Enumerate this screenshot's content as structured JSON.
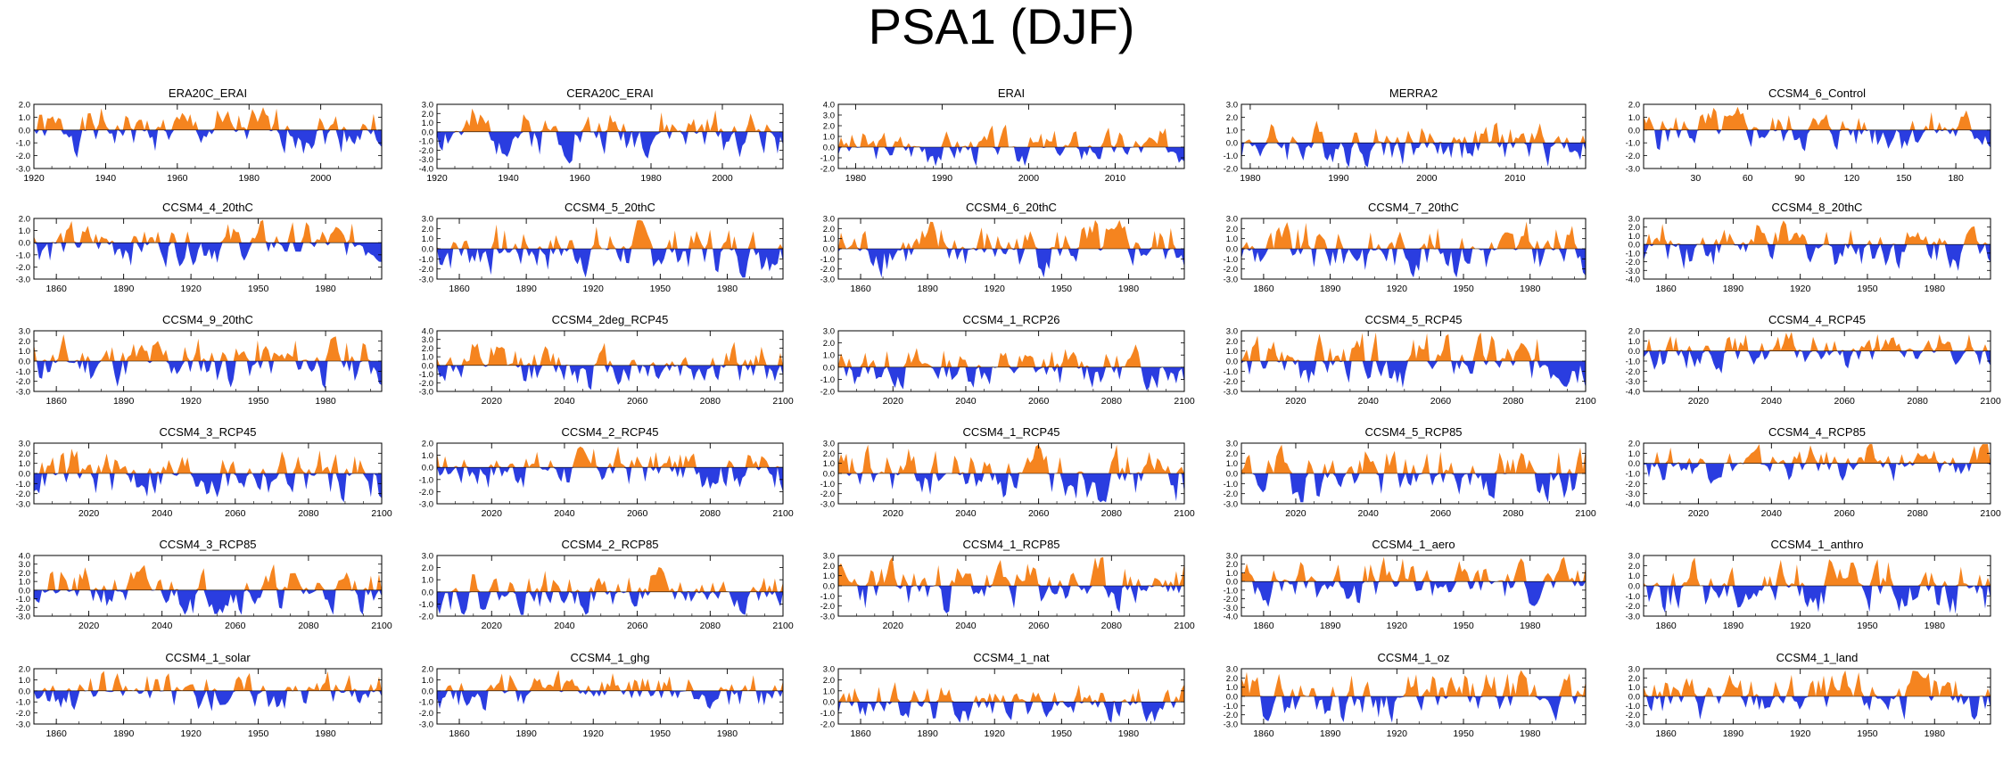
{
  "title": "PSA1 (DJF)",
  "colors": {
    "positive": "#f5841f",
    "negative": "#2a3de0",
    "axis": "#000000"
  },
  "chart_data": [
    {
      "type": "area",
      "title": "ERA20C_ERAI",
      "xlim": [
        1920,
        2017
      ],
      "xticks": [
        1920,
        1940,
        1960,
        1980,
        2000
      ],
      "ylim": [
        -3,
        2
      ],
      "yticks": [
        "2.0",
        "1.0",
        "0.0",
        "-1.0",
        "-2.0",
        "-3.0"
      ],
      "seed": 1
    },
    {
      "type": "area",
      "title": "CERA20C_ERAI",
      "xlim": [
        1920,
        2017
      ],
      "xticks": [
        1920,
        1940,
        1960,
        1980,
        2000
      ],
      "ylim": [
        -4,
        3
      ],
      "yticks": [
        "3.0",
        "2.0",
        "1.0",
        "0.0",
        "-1.0",
        "-2.0",
        "-3.0",
        "-4.0"
      ],
      "seed": 2
    },
    {
      "type": "area",
      "title": "ERAI",
      "xlim": [
        1978,
        2018
      ],
      "xticks": [
        1980,
        1990,
        2000,
        2010
      ],
      "ylim": [
        -2,
        4
      ],
      "yticks": [
        "4.0",
        "3.0",
        "2.0",
        "1.0",
        "0.0",
        "-1.0",
        "-2.0"
      ],
      "seed": 3
    },
    {
      "type": "area",
      "title": "MERRA2",
      "xlim": [
        1979,
        2018
      ],
      "xticks": [
        1980,
        1990,
        2000,
        2010
      ],
      "ylim": [
        -2,
        3
      ],
      "yticks": [
        "3.0",
        "2.0",
        "1.0",
        "0.0",
        "-1.0",
        "-2.0"
      ],
      "seed": 4
    },
    {
      "type": "area",
      "title": "CCSM4_6_Control",
      "xlim": [
        0,
        200
      ],
      "xticks": [
        30,
        60,
        90,
        120,
        150,
        180
      ],
      "ylim": [
        -3,
        2
      ],
      "yticks": [
        "2.0",
        "1.0",
        "0.0",
        "-1.0",
        "-2.0",
        "-3.0"
      ],
      "seed": 5
    },
    {
      "type": "area",
      "title": "CCSM4_4_20thC",
      "xlim": [
        1850,
        2005
      ],
      "xticks": [
        1860,
        1890,
        1920,
        1950,
        1980
      ],
      "ylim": [
        -3,
        2
      ],
      "yticks": [
        "2.0",
        "1.0",
        "0.0",
        "-1.0",
        "-2.0",
        "-3.0"
      ],
      "seed": 6
    },
    {
      "type": "area",
      "title": "CCSM4_5_20thC",
      "xlim": [
        1850,
        2005
      ],
      "xticks": [
        1860,
        1890,
        1920,
        1950,
        1980
      ],
      "ylim": [
        -3,
        3
      ],
      "yticks": [
        "3.0",
        "2.0",
        "1.0",
        "0.0",
        "-1.0",
        "-2.0",
        "-3.0"
      ],
      "seed": 7
    },
    {
      "type": "area",
      "title": "CCSM4_6_20thC",
      "xlim": [
        1850,
        2005
      ],
      "xticks": [
        1860,
        1890,
        1920,
        1950,
        1980
      ],
      "ylim": [
        -3,
        3
      ],
      "yticks": [
        "3.0",
        "2.0",
        "1.0",
        "0.0",
        "-1.0",
        "-2.0",
        "-3.0"
      ],
      "seed": 8
    },
    {
      "type": "area",
      "title": "CCSM4_7_20thC",
      "xlim": [
        1850,
        2005
      ],
      "xticks": [
        1860,
        1890,
        1920,
        1950,
        1980
      ],
      "ylim": [
        -3,
        3
      ],
      "yticks": [
        "3.0",
        "2.0",
        "1.0",
        "0.0",
        "-1.0",
        "-2.0",
        "-3.0"
      ],
      "seed": 9
    },
    {
      "type": "area",
      "title": "CCSM4_8_20thC",
      "xlim": [
        1850,
        2005
      ],
      "xticks": [
        1860,
        1890,
        1920,
        1950,
        1980
      ],
      "ylim": [
        -4,
        3
      ],
      "yticks": [
        "3.0",
        "2.0",
        "1.0",
        "0.0",
        "-1.0",
        "-2.0",
        "-3.0",
        "-4.0"
      ],
      "seed": 10
    },
    {
      "type": "area",
      "title": "CCSM4_9_20thC",
      "xlim": [
        1850,
        2005
      ],
      "xticks": [
        1860,
        1890,
        1920,
        1950,
        1980
      ],
      "ylim": [
        -3,
        3
      ],
      "yticks": [
        "3.0",
        "2.0",
        "1.0",
        "0.0",
        "-1.0",
        "-2.0",
        "-3.0"
      ],
      "seed": 11
    },
    {
      "type": "area",
      "title": "CCSM4_2deg_RCP45",
      "xlim": [
        2005,
        2100
      ],
      "xticks": [
        2020,
        2040,
        2060,
        2080,
        2100
      ],
      "ylim": [
        -3,
        4
      ],
      "yticks": [
        "4.0",
        "3.0",
        "2.0",
        "1.0",
        "0.0",
        "-1.0",
        "-2.0",
        "-3.0"
      ],
      "seed": 12
    },
    {
      "type": "area",
      "title": "CCSM4_1_RCP26",
      "xlim": [
        2005,
        2100
      ],
      "xticks": [
        2020,
        2040,
        2060,
        2080,
        2100
      ],
      "ylim": [
        -2,
        3
      ],
      "yticks": [
        "3.0",
        "2.0",
        "1.0",
        "0.0",
        "-1.0",
        "-2.0"
      ],
      "seed": 13
    },
    {
      "type": "area",
      "title": "CCSM4_5_RCP45",
      "xlim": [
        2005,
        2100
      ],
      "xticks": [
        2020,
        2040,
        2060,
        2080,
        2100
      ],
      "ylim": [
        -3,
        3
      ],
      "yticks": [
        "3.0",
        "2.0",
        "1.0",
        "0.0",
        "-1.0",
        "-2.0",
        "-3.0"
      ],
      "seed": 14
    },
    {
      "type": "area",
      "title": "CCSM4_4_RCP45",
      "xlim": [
        2005,
        2100
      ],
      "xticks": [
        2020,
        2040,
        2060,
        2080,
        2100
      ],
      "ylim": [
        -4,
        2
      ],
      "yticks": [
        "2.0",
        "1.0",
        "0.0",
        "-1.0",
        "-2.0",
        "-3.0",
        "-4.0"
      ],
      "seed": 15
    },
    {
      "type": "area",
      "title": "CCSM4_3_RCP45",
      "xlim": [
        2005,
        2100
      ],
      "xticks": [
        2020,
        2040,
        2060,
        2080,
        2100
      ],
      "ylim": [
        -3,
        3
      ],
      "yticks": [
        "3.0",
        "2.0",
        "1.0",
        "0.0",
        "-1.0",
        "-2.0",
        "-3.0"
      ],
      "seed": 16
    },
    {
      "type": "area",
      "title": "CCSM4_2_RCP45",
      "xlim": [
        2005,
        2100
      ],
      "xticks": [
        2020,
        2040,
        2060,
        2080,
        2100
      ],
      "ylim": [
        -3,
        2
      ],
      "yticks": [
        "2.0",
        "1.0",
        "0.0",
        "-1.0",
        "-2.0",
        "-3.0"
      ],
      "seed": 17
    },
    {
      "type": "area",
      "title": "CCSM4_1_RCP45",
      "xlim": [
        2005,
        2100
      ],
      "xticks": [
        2020,
        2040,
        2060,
        2080,
        2100
      ],
      "ylim": [
        -3,
        3
      ],
      "yticks": [
        "3.0",
        "2.0",
        "1.0",
        "0.0",
        "-1.0",
        "-2.0",
        "-3.0"
      ],
      "seed": 18
    },
    {
      "type": "area",
      "title": "CCSM4_5_RCP85",
      "xlim": [
        2005,
        2100
      ],
      "xticks": [
        2020,
        2040,
        2060,
        2080,
        2100
      ],
      "ylim": [
        -3,
        3
      ],
      "yticks": [
        "3.0",
        "2.0",
        "1.0",
        "0.0",
        "-1.0",
        "-2.0",
        "-3.0"
      ],
      "seed": 19
    },
    {
      "type": "area",
      "title": "CCSM4_4_RCP85",
      "xlim": [
        2005,
        2100
      ],
      "xticks": [
        2020,
        2040,
        2060,
        2080,
        2100
      ],
      "ylim": [
        -4,
        2
      ],
      "yticks": [
        "2.0",
        "1.0",
        "0.0",
        "-1.0",
        "-2.0",
        "-3.0",
        "-4.0"
      ],
      "seed": 20
    },
    {
      "type": "area",
      "title": "CCSM4_3_RCP85",
      "xlim": [
        2005,
        2100
      ],
      "xticks": [
        2020,
        2040,
        2060,
        2080,
        2100
      ],
      "ylim": [
        -3,
        4
      ],
      "yticks": [
        "4.0",
        "3.0",
        "2.0",
        "1.0",
        "0.0",
        "-1.0",
        "-2.0",
        "-3.0"
      ],
      "seed": 21
    },
    {
      "type": "area",
      "title": "CCSM4_2_RCP85",
      "xlim": [
        2005,
        2100
      ],
      "xticks": [
        2020,
        2040,
        2060,
        2080,
        2100
      ],
      "ylim": [
        -2,
        3
      ],
      "yticks": [
        "3.0",
        "2.0",
        "1.0",
        "0.0",
        "-1.0",
        "-2.0"
      ],
      "seed": 22
    },
    {
      "type": "area",
      "title": "CCSM4_1_RCP85",
      "xlim": [
        2005,
        2100
      ],
      "xticks": [
        2020,
        2040,
        2060,
        2080,
        2100
      ],
      "ylim": [
        -3,
        3
      ],
      "yticks": [
        "3.0",
        "2.0",
        "1.0",
        "0.0",
        "-1.0",
        "-2.0",
        "-3.0"
      ],
      "seed": 23
    },
    {
      "type": "area",
      "title": "CCSM4_1_aero",
      "xlim": [
        1850,
        2005
      ],
      "xticks": [
        1860,
        1890,
        1920,
        1950,
        1980
      ],
      "ylim": [
        -4,
        3
      ],
      "yticks": [
        "3.0",
        "2.0",
        "1.0",
        "0.0",
        "-1.0",
        "-2.0",
        "-3.0",
        "-4.0"
      ],
      "seed": 24
    },
    {
      "type": "area",
      "title": "CCSM4_1_anthro",
      "xlim": [
        1850,
        2005
      ],
      "xticks": [
        1860,
        1890,
        1920,
        1950,
        1980
      ],
      "ylim": [
        -3,
        3
      ],
      "yticks": [
        "3.0",
        "2.0",
        "1.0",
        "0.0",
        "-1.0",
        "-2.0",
        "-3.0"
      ],
      "seed": 25
    },
    {
      "type": "area",
      "title": "CCSM4_1_solar",
      "xlim": [
        1850,
        2005
      ],
      "xticks": [
        1860,
        1890,
        1920,
        1950,
        1980
      ],
      "ylim": [
        -3,
        2
      ],
      "yticks": [
        "2.0",
        "1.0",
        "0.0",
        "-1.0",
        "-2.0",
        "-3.0"
      ],
      "seed": 26
    },
    {
      "type": "area",
      "title": "CCSM4_1_ghg",
      "xlim": [
        1850,
        2005
      ],
      "xticks": [
        1860,
        1890,
        1920,
        1950,
        1980
      ],
      "ylim": [
        -3,
        2
      ],
      "yticks": [
        "2.0",
        "1.0",
        "0.0",
        "-1.0",
        "-2.0",
        "-3.0"
      ],
      "seed": 27
    },
    {
      "type": "area",
      "title": "CCSM4_1_nat",
      "xlim": [
        1850,
        2005
      ],
      "xticks": [
        1860,
        1890,
        1920,
        1950,
        1980
      ],
      "ylim": [
        -2,
        3
      ],
      "yticks": [
        "3.0",
        "2.0",
        "1.0",
        "0.0",
        "-1.0",
        "-2.0"
      ],
      "seed": 28
    },
    {
      "type": "area",
      "title": "CCSM4_1_oz",
      "xlim": [
        1850,
        2005
      ],
      "xticks": [
        1860,
        1890,
        1920,
        1950,
        1980
      ],
      "ylim": [
        -3,
        3
      ],
      "yticks": [
        "3.0",
        "2.0",
        "1.0",
        "0.0",
        "-1.0",
        "-2.0",
        "-3.0"
      ],
      "seed": 29
    },
    {
      "type": "area",
      "title": "CCSM4_1_land",
      "xlim": [
        1850,
        2005
      ],
      "xticks": [
        1860,
        1890,
        1920,
        1950,
        1980
      ],
      "ylim": [
        -3,
        3
      ],
      "yticks": [
        "3.0",
        "2.0",
        "1.0",
        "0.0",
        "-1.0",
        "-2.0",
        "-3.0"
      ],
      "seed": 30
    }
  ]
}
